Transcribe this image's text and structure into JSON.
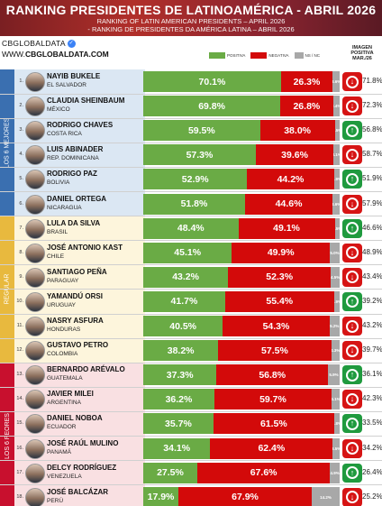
{
  "header": {
    "title": "RANKING PRESIDENTES DE LATINOAMÉRICA - ABRIL 2026",
    "subtitle_en": "RANKING OF LATIN AMERICAN PRESIDENTS – APRIL 2026",
    "subtitle_pt": "- RANKING DE PRESIDENTES DA AMÉRICA LATINA – ABRIL 2026"
  },
  "brand": {
    "handle": "CBGLOBALDATA",
    "site_prefix": "WWW.",
    "site": "CBGLOBALDATA.COM"
  },
  "legend": {
    "positive": "POSITIVA",
    "negative": "NEGATIVA",
    "nsnc": "NS / NC"
  },
  "image_header": "IMAGEN POSITIVA MAR./26",
  "colors": {
    "positive": "#6aab45",
    "negative": "#d30a0a",
    "nsnc": "#a8a8a8",
    "up": "#1f9a3e",
    "down": "#d61414"
  },
  "groups": [
    {
      "label": "LOS 6 MEJORES",
      "color": "#3a6fb0",
      "bg": "#dbe7f3"
    },
    {
      "label": "REGULAR",
      "color": "#e8b93e",
      "bg": "#fdf5dc"
    },
    {
      "label": "LOS 6 PEORES",
      "color": "#c8102e",
      "bg": "#f9e0e2"
    }
  ],
  "chart_data": {
    "type": "bar",
    "stacked": true,
    "title": "RANKING PRESIDENTES DE LATINOAMÉRICA - ABRIL 2026",
    "series_names": [
      "POSITIVA",
      "NEGATIVA",
      "NS / NC"
    ],
    "rows": [
      {
        "rank": "1.",
        "name": "NAYIB BUKELE",
        "country": "EL SALVADOR",
        "pos": 70.1,
        "neg": 26.3,
        "nsnc": 3.6,
        "trend": "down",
        "prev": "71.8%"
      },
      {
        "rank": "2.",
        "name": "CLAUDIA SHEINBAUM",
        "country": "MÉXICO",
        "pos": 69.8,
        "neg": 26.8,
        "nsnc": 3.4,
        "trend": "down",
        "prev": "72.3%"
      },
      {
        "rank": "3.",
        "name": "RODRIGO CHAVES",
        "country": "COSTA RICA",
        "pos": 59.5,
        "neg": 38.0,
        "nsnc": 2.5,
        "trend": "up",
        "prev": "56.8%"
      },
      {
        "rank": "4.",
        "name": "LUIS ABINADER",
        "country": "REP. DOMINICANA",
        "pos": 57.3,
        "neg": 39.6,
        "nsnc": 3.1,
        "trend": "down",
        "prev": "58.7%"
      },
      {
        "rank": "5.",
        "name": "RODRIGO PAZ",
        "country": "BOLIVIA",
        "pos": 52.9,
        "neg": 44.2,
        "nsnc": 2.9,
        "trend": "up",
        "prev": "51.9%"
      },
      {
        "rank": "6.",
        "name": "DANIEL ORTEGA",
        "country": "NICARAGUA",
        "pos": 51.8,
        "neg": 44.6,
        "nsnc": 3.6,
        "trend": "down",
        "prev": "57.9%"
      },
      {
        "rank": "7.",
        "name": "LULA DA SILVA",
        "country": "BRASIL",
        "pos": 48.4,
        "neg": 49.1,
        "nsnc": 2.5,
        "trend": "up",
        "prev": "46.6%"
      },
      {
        "rank": "8.",
        "name": "JOSÉ ANTONIO KAST",
        "country": "CHILE",
        "pos": 45.1,
        "neg": 49.9,
        "nsnc": 5.0,
        "trend": "down",
        "prev": "48.9%"
      },
      {
        "rank": "9.",
        "name": "SANTIAGO PEÑA",
        "country": "PARAGUAY",
        "pos": 43.2,
        "neg": 52.3,
        "nsnc": 4.5,
        "trend": "down",
        "prev": "43.4%"
      },
      {
        "rank": "10.",
        "name": "YAMANDÚ ORSI",
        "country": "URUGUAY",
        "pos": 41.7,
        "neg": 55.4,
        "nsnc": 2.9,
        "trend": "up",
        "prev": "39.2%"
      },
      {
        "rank": "11.",
        "name": "NASRY ASFURA",
        "country": "HONDURAS",
        "pos": 40.5,
        "neg": 54.3,
        "nsnc": 5.2,
        "trend": "down",
        "prev": "43.2%"
      },
      {
        "rank": "12.",
        "name": "GUSTAVO PETRO",
        "country": "COLOMBIA",
        "pos": 38.2,
        "neg": 57.5,
        "nsnc": 4.3,
        "trend": "down",
        "prev": "39.7%"
      },
      {
        "rank": "13.",
        "name": "BERNARDO ARÉVALO",
        "country": "GUATEMALA",
        "pos": 37.3,
        "neg": 56.8,
        "nsnc": 5.9,
        "trend": "up",
        "prev": "36.1%"
      },
      {
        "rank": "14.",
        "name": "JAVIER MILEI",
        "country": "ARGENTINA",
        "pos": 36.2,
        "neg": 59.7,
        "nsnc": 4.1,
        "trend": "down",
        "prev": "42.3%"
      },
      {
        "rank": "15.",
        "name": "DANIEL NOBOA",
        "country": "ECUADOR",
        "pos": 35.7,
        "neg": 61.5,
        "nsnc": 2.8,
        "trend": "up",
        "prev": "33.5%"
      },
      {
        "rank": "16.",
        "name": "JOSÉ RAÚL MULINO",
        "country": "PANAMÁ",
        "pos": 34.1,
        "neg": 62.4,
        "nsnc": 3.5,
        "trend": "down",
        "prev": "34.2%"
      },
      {
        "rank": "17.",
        "name": "DELCY RODRÍGUEZ",
        "country": "VENEZUELA",
        "pos": 27.5,
        "neg": 67.6,
        "nsnc": 4.9,
        "trend": "up",
        "prev": "26.4%"
      },
      {
        "rank": "18.",
        "name": "JOSÉ BALCÁZAR",
        "country": "PERÚ",
        "pos": 17.9,
        "neg": 67.9,
        "nsnc": 14.2,
        "trend": "down",
        "prev": "25.2%"
      }
    ]
  }
}
